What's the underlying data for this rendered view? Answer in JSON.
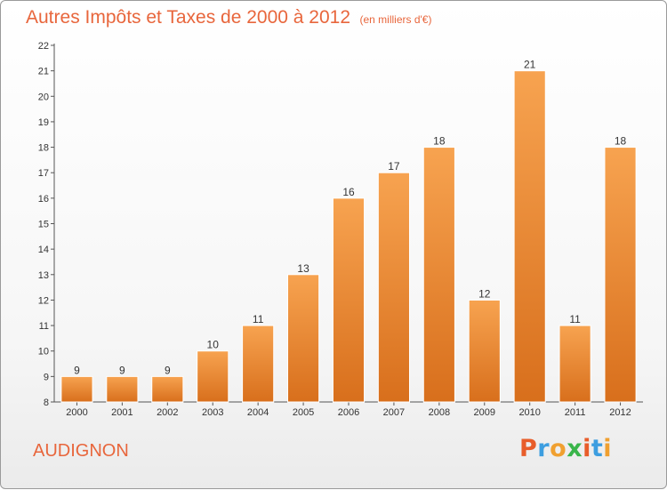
{
  "chart_data": {
    "type": "bar",
    "title": "Autres Impôts et Taxes de 2000 à 2012",
    "subtitle": "(en milliers d'€)",
    "categories": [
      "2000",
      "2001",
      "2002",
      "2003",
      "2004",
      "2005",
      "2006",
      "2007",
      "2008",
      "2009",
      "2010",
      "2011",
      "2012"
    ],
    "values": [
      9,
      9,
      9,
      10,
      11,
      13,
      16,
      17,
      18,
      12,
      21,
      11,
      18
    ],
    "data_labels": [
      "9",
      "9",
      "9",
      "10",
      "11",
      "13",
      "16",
      "17",
      "18",
      "12",
      "21",
      "11",
      "18"
    ],
    "xlabel": "",
    "ylabel": "",
    "ylim": [
      8,
      22
    ],
    "yticks": [
      8,
      9,
      10,
      11,
      12,
      13,
      14,
      15,
      16,
      17,
      18,
      19,
      20,
      21,
      22
    ],
    "grid": false,
    "legend": "none",
    "bar_color_top": "#f7a350",
    "bar_color_bottom": "#d86f1c",
    "accent_color": "#e8663c"
  },
  "footer": {
    "commune": "AUDIGNON",
    "logo_letters": [
      "P",
      "r",
      "o",
      "x",
      "i",
      "t",
      "i"
    ],
    "logo_colors": [
      "#e85d2a",
      "#3d9ee0",
      "#f0a030",
      "#39b54a",
      "#e85d2a",
      "#3d9ee0",
      "#f0a030"
    ]
  }
}
